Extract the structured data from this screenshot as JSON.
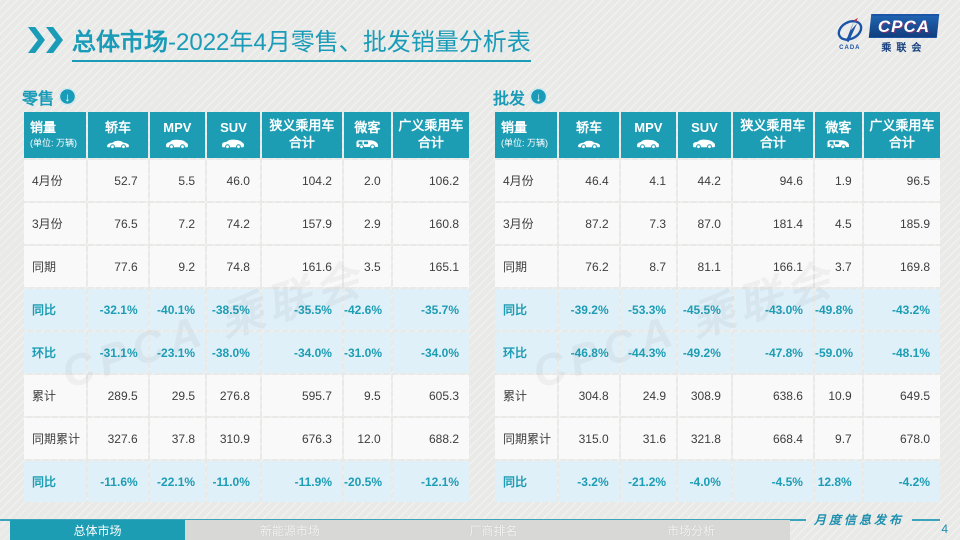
{
  "page": {
    "title_bold": "总体市场",
    "title_rest": "-2022年4月零售、批发销量分析表",
    "page_number": "4",
    "footer_note": "月度信息发布",
    "watermark": "CPCA 乘联会"
  },
  "logo": {
    "name": "CPCA",
    "subtitle": "乘联会",
    "emblem_caption": "CADA"
  },
  "columns": {
    "col0_title": "销量",
    "col0_unit": "(单位: 万辆)",
    "cols": [
      {
        "label": "轿车"
      },
      {
        "label": "MPV"
      },
      {
        "label": "SUV"
      },
      {
        "label_line1": "狭义乘用车",
        "label_line2": "合计"
      },
      {
        "label": "微客"
      },
      {
        "label_line1": "广义乘用车",
        "label_line2": "合计"
      }
    ]
  },
  "tables": [
    {
      "section_label": "零售",
      "rows": [
        {
          "label": "4月份",
          "highlight": false,
          "values": [
            "52.7",
            "5.5",
            "46.0",
            "104.2",
            "2.0",
            "106.2"
          ]
        },
        {
          "label": "3月份",
          "highlight": false,
          "values": [
            "76.5",
            "7.2",
            "74.2",
            "157.9",
            "2.9",
            "160.8"
          ]
        },
        {
          "label": "同期",
          "highlight": false,
          "values": [
            "77.6",
            "9.2",
            "74.8",
            "161.6",
            "3.5",
            "165.1"
          ]
        },
        {
          "label": "同比",
          "highlight": true,
          "values": [
            "-32.1%",
            "-40.1%",
            "-38.5%",
            "-35.5%",
            "-42.6%",
            "-35.7%"
          ]
        },
        {
          "label": "环比",
          "highlight": true,
          "values": [
            "-31.1%",
            "-23.1%",
            "-38.0%",
            "-34.0%",
            "-31.0%",
            "-34.0%"
          ]
        },
        {
          "label": "累计",
          "highlight": false,
          "values": [
            "289.5",
            "29.5",
            "276.8",
            "595.7",
            "9.5",
            "605.3"
          ]
        },
        {
          "label": "同期累计",
          "highlight": false,
          "values": [
            "327.6",
            "37.8",
            "310.9",
            "676.3",
            "12.0",
            "688.2"
          ]
        },
        {
          "label": "同比",
          "highlight": true,
          "values": [
            "-11.6%",
            "-22.1%",
            "-11.0%",
            "-11.9%",
            "-20.5%",
            "-12.1%"
          ]
        }
      ]
    },
    {
      "section_label": "批发",
      "rows": [
        {
          "label": "4月份",
          "highlight": false,
          "values": [
            "46.4",
            "4.1",
            "44.2",
            "94.6",
            "1.9",
            "96.5"
          ]
        },
        {
          "label": "3月份",
          "highlight": false,
          "values": [
            "87.2",
            "7.3",
            "87.0",
            "181.4",
            "4.5",
            "185.9"
          ]
        },
        {
          "label": "同期",
          "highlight": false,
          "values": [
            "76.2",
            "8.7",
            "81.1",
            "166.1",
            "3.7",
            "169.8"
          ]
        },
        {
          "label": "同比",
          "highlight": true,
          "values": [
            "-39.2%",
            "-53.3%",
            "-45.5%",
            "-43.0%",
            "-49.8%",
            "-43.2%"
          ]
        },
        {
          "label": "环比",
          "highlight": true,
          "values": [
            "-46.8%",
            "-44.3%",
            "-49.2%",
            "-47.8%",
            "-59.0%",
            "-48.1%"
          ]
        },
        {
          "label": "累计",
          "highlight": false,
          "values": [
            "304.8",
            "24.9",
            "308.9",
            "638.6",
            "10.9",
            "649.5"
          ]
        },
        {
          "label": "同期累计",
          "highlight": false,
          "values": [
            "315.0",
            "31.6",
            "321.8",
            "668.4",
            "9.7",
            "678.0"
          ]
        },
        {
          "label": "同比",
          "highlight": true,
          "values": [
            "-3.2%",
            "-21.2%",
            "-4.0%",
            "-4.5%",
            "12.8%",
            "-4.2%"
          ]
        }
      ]
    }
  ],
  "footer": {
    "tabs": [
      {
        "label": "总体市场",
        "active": true
      },
      {
        "label": "新能源市场",
        "active": false
      },
      {
        "label": "厂商排名",
        "active": false
      },
      {
        "label": "市场分析",
        "active": false
      }
    ]
  },
  "colors": {
    "accent_teal": "#1d9db4",
    "highlight_row": "#e0f0f8",
    "logo_blue": "#1a55a8"
  }
}
